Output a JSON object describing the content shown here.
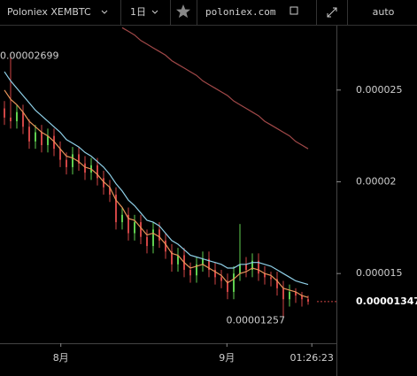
{
  "toolbar": {
    "symbol": "Poloniex XEMBTC",
    "interval": "1日",
    "site": "poloniex.com",
    "scale": "auto"
  },
  "chart_data": {
    "type": "candlestick",
    "open": [
      2.4e-05,
      2.35e-05,
      2.33e-05,
      2.38e-05,
      2.3e-05,
      2.22e-05,
      2.27e-05,
      2.2e-05,
      2.25e-05,
      2.18e-05,
      2.12e-05,
      2.08e-05,
      2.15e-05,
      2.1e-05,
      2.05e-05,
      2.09e-05,
      2.02e-05,
      1.97e-05,
      1.93e-05,
      1.78e-05,
      1.82e-05,
      1.72e-05,
      1.78e-05,
      1.7e-05,
      1.65e-05,
      1.74e-05,
      1.68e-05,
      1.62e-05,
      1.55e-05,
      1.6e-05,
      1.52e-05,
      1.49e-05,
      1.55e-05,
      1.58e-05,
      1.52e-05,
      1.48e-05,
      1.46e-05,
      1.4e-05,
      1.5e-05,
      1.55e-05,
      1.52e-05,
      1.57e-05,
      1.5e-05,
      1.48e-05,
      1.47e-05,
      1.42e-05,
      1.36e-05,
      1.4e-05,
      1.38e-05,
      1.36e-05
    ],
    "high": [
      2.44e-05,
      2.699e-05,
      2.42e-05,
      2.42e-05,
      2.34e-05,
      2.31e-05,
      2.31e-05,
      2.29e-05,
      2.29e-05,
      2.22e-05,
      2.16e-05,
      2.19e-05,
      2.19e-05,
      2.14e-05,
      2.13e-05,
      2.13e-05,
      2.06e-05,
      2.01e-05,
      1.97e-05,
      1.86e-05,
      1.86e-05,
      1.82e-05,
      1.82e-05,
      1.74e-05,
      1.78e-05,
      1.78e-05,
      1.72e-05,
      1.66e-05,
      1.64e-05,
      1.64e-05,
      1.56e-05,
      1.59e-05,
      1.62e-05,
      1.62e-05,
      1.56e-05,
      1.52e-05,
      1.5e-05,
      1.54e-05,
      1.77e-05,
      1.59e-05,
      1.61e-05,
      1.61e-05,
      1.54e-05,
      1.51e-05,
      1.51e-05,
      1.46e-05,
      1.44e-05,
      1.42e-05,
      1.4e-05,
      1.38e-05
    ],
    "low": [
      2.31e-05,
      2.29e-05,
      2.29e-05,
      2.26e-05,
      2.18e-05,
      2.18e-05,
      2.16e-05,
      2.16e-05,
      2.14e-05,
      2.08e-05,
      2.04e-05,
      2.04e-05,
      2.06e-05,
      2.01e-05,
      2.01e-05,
      1.98e-05,
      1.93e-05,
      1.89e-05,
      1.74e-05,
      1.74e-05,
      1.68e-05,
      1.68e-05,
      1.66e-05,
      1.61e-05,
      1.61e-05,
      1.64e-05,
      1.58e-05,
      1.51e-05,
      1.51e-05,
      1.48e-05,
      1.45e-05,
      1.45e-05,
      1.51e-05,
      1.48e-05,
      1.44e-05,
      1.42e-05,
      1.36e-05,
      1.36e-05,
      1.46e-05,
      1.48e-05,
      1.48e-05,
      1.46e-05,
      1.44e-05,
      1.43e-05,
      1.38e-05,
      1.257e-05,
      1.32e-05,
      1.34e-05,
      1.32e-05,
      1.33e-05
    ],
    "close": [
      2.35e-05,
      2.33e-05,
      2.38e-05,
      2.3e-05,
      2.22e-05,
      2.27e-05,
      2.2e-05,
      2.25e-05,
      2.18e-05,
      2.12e-05,
      2.08e-05,
      2.15e-05,
      2.1e-05,
      2.05e-05,
      2.09e-05,
      2.02e-05,
      1.97e-05,
      1.93e-05,
      1.78e-05,
      1.82e-05,
      1.72e-05,
      1.78e-05,
      1.7e-05,
      1.65e-05,
      1.74e-05,
      1.68e-05,
      1.62e-05,
      1.55e-05,
      1.6e-05,
      1.52e-05,
      1.49e-05,
      1.55e-05,
      1.58e-05,
      1.52e-05,
      1.48e-05,
      1.46e-05,
      1.4e-05,
      1.5e-05,
      1.55e-05,
      1.52e-05,
      1.57e-05,
      1.5e-05,
      1.48e-05,
      1.47e-05,
      1.42e-05,
      1.36e-05,
      1.4e-05,
      1.38e-05,
      1.36e-05,
      1.347e-05
    ],
    "up_color": "#5fcf4f",
    "down_color": "#d04545",
    "series": [
      {
        "color": "#8fd0e8",
        "values": [
          2.6e-05,
          2.55e-05,
          2.51e-05,
          2.47e-05,
          2.43e-05,
          2.39e-05,
          2.36e-05,
          2.33e-05,
          2.3e-05,
          2.27e-05,
          2.23e-05,
          2.21e-05,
          2.19e-05,
          2.16e-05,
          2.14e-05,
          2.11e-05,
          2.08e-05,
          2.04e-05,
          1.99e-05,
          1.95e-05,
          1.9e-05,
          1.87e-05,
          1.83e-05,
          1.79e-05,
          1.78e-05,
          1.76e-05,
          1.72e-05,
          1.68e-05,
          1.66e-05,
          1.63e-05,
          1.6e-05,
          1.59e-05,
          1.58e-05,
          1.57e-05,
          1.56e-05,
          1.55e-05,
          1.53e-05,
          1.53e-05,
          1.55e-05,
          1.55e-05,
          1.56e-05,
          1.56e-05,
          1.55e-05,
          1.54e-05,
          1.52e-05,
          1.5e-05,
          1.48e-05,
          1.46e-05,
          1.45e-05,
          1.44e-05
        ]
      },
      {
        "color": "#e8955a",
        "values": [
          2.5e-05,
          2.45e-05,
          2.42e-05,
          2.38e-05,
          2.33e-05,
          2.3e-05,
          2.27e-05,
          2.25e-05,
          2.22e-05,
          2.18e-05,
          2.14e-05,
          2.13e-05,
          2.11e-05,
          2.08e-05,
          2.07e-05,
          2.04e-05,
          2e-05,
          1.97e-05,
          1.9e-05,
          1.86e-05,
          1.8e-05,
          1.79e-05,
          1.75e-05,
          1.71e-05,
          1.72e-05,
          1.7e-05,
          1.66e-05,
          1.61e-05,
          1.6e-05,
          1.56e-05,
          1.53e-05,
          1.54e-05,
          1.55e-05,
          1.53e-05,
          1.51e-05,
          1.49e-05,
          1.45e-05,
          1.47e-05,
          1.5e-05,
          1.51e-05,
          1.53e-05,
          1.52e-05,
          1.5e-05,
          1.49e-05,
          1.46e-05,
          1.42e-05,
          1.41e-05,
          1.4e-05,
          1.38e-05,
          1.37e-05
        ]
      },
      {
        "color": "#a04848",
        "values": [
          null,
          null,
          null,
          null,
          null,
          null,
          null,
          null,
          null,
          null,
          null,
          null,
          null,
          null,
          null,
          null,
          null,
          null,
          null,
          2.84e-05,
          2.82e-05,
          2.8e-05,
          2.77e-05,
          2.75e-05,
          2.73e-05,
          2.71e-05,
          2.69e-05,
          2.66e-05,
          2.64e-05,
          2.62e-05,
          2.6e-05,
          2.58e-05,
          2.55e-05,
          2.53e-05,
          2.51e-05,
          2.49e-05,
          2.47e-05,
          2.44e-05,
          2.42e-05,
          2.4e-05,
          2.38e-05,
          2.36e-05,
          2.33e-05,
          2.31e-05,
          2.29e-05,
          2.27e-05,
          2.25e-05,
          2.22e-05,
          2.2e-05,
          2.18e-05
        ]
      }
    ],
    "ylim": [
      1.12e-05,
      2.851e-05
    ],
    "yticks": [
      2.5e-05,
      2e-05,
      1.5e-05
    ],
    "xlim": [
      -0.714,
      53.57
    ],
    "xticks": [
      {
        "value": 9.1,
        "label": "8月"
      },
      {
        "value": 35.9,
        "label": "9月"
      },
      {
        "value": 49.6,
        "label": "01:26:23"
      }
    ]
  }
}
